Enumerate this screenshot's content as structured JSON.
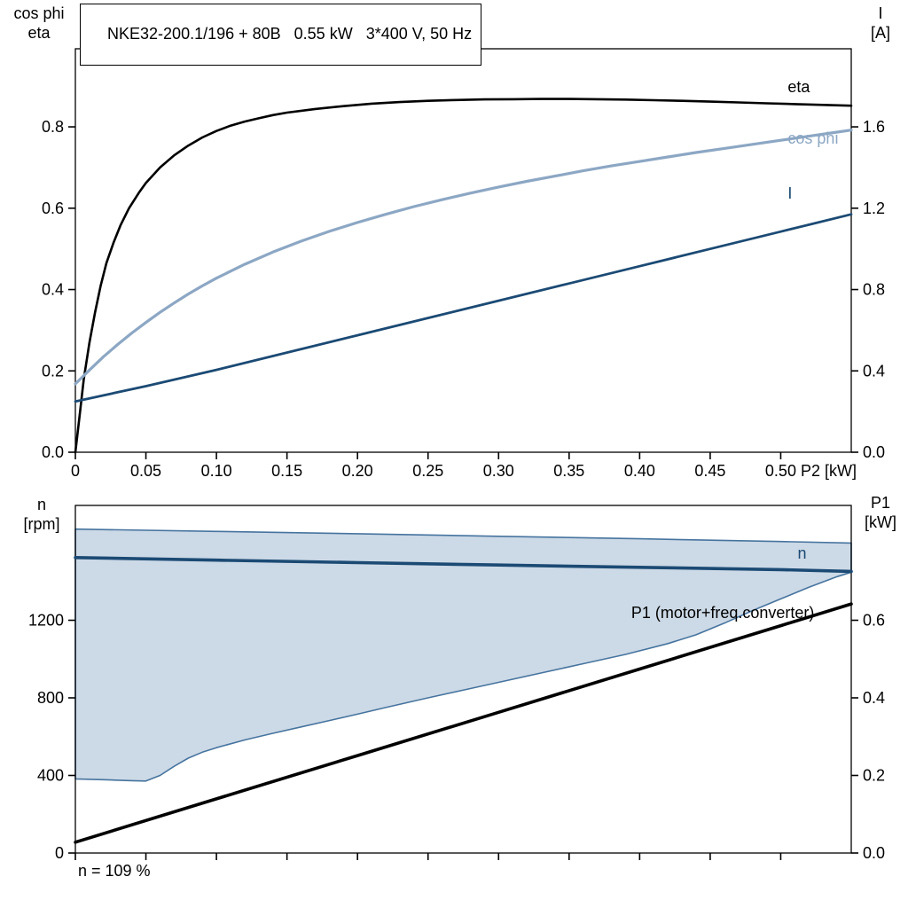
{
  "header": {
    "title": "NKE32-200.1/196 + 80B   0.55 kW   3*400 V, 50 Hz"
  },
  "axes_corner_labels": {
    "top_chart_left": [
      "cos phi",
      "eta"
    ],
    "top_chart_right": [
      "I",
      "[A]"
    ],
    "bottom_chart_left": [
      "n",
      "[rpm]"
    ],
    "bottom_chart_right": [
      "P1",
      "[kW]"
    ]
  },
  "footer": {
    "note": "n = 109 %"
  },
  "colors": {
    "black": "#000000",
    "dark_blue": "#1B4A74",
    "light_blue": "#8CA7C4",
    "band_fill": "#CCD9E6",
    "band_edge": "#46749F"
  },
  "chart_data": [
    {
      "type": "line",
      "title": "NKE32-200.1/196 + 80B   0.55 kW   3*400 V, 50 Hz",
      "x_axis": {
        "label": "P2 [kW]",
        "min": 0,
        "max": 0.55,
        "ticks": [
          0,
          0.05,
          0.1,
          0.15,
          0.2,
          0.25,
          0.3,
          0.35,
          0.4,
          0.45,
          0.5
        ],
        "tick_labels": [
          "0",
          "0.05",
          "0.10",
          "0.15",
          "0.20",
          "0.25",
          "0.30",
          "0.35",
          "0.40",
          "0.45",
          "0.50"
        ]
      },
      "y_left": {
        "label": "cos phi / eta",
        "min": 0,
        "max": 0.992,
        "ticks": [
          0,
          0.2,
          0.4,
          0.6,
          0.8
        ],
        "tick_labels": [
          "0.0",
          "0.2",
          "0.4",
          "0.6",
          "0.8"
        ]
      },
      "y_right": {
        "label": "I [A]",
        "min": 0,
        "max": 1.984,
        "ticks": [
          0,
          0.4,
          0.8,
          1.2,
          1.6
        ],
        "tick_labels": [
          "0.0",
          "0.4",
          "0.8",
          "1.2",
          "1.6"
        ]
      },
      "series": [
        {
          "name": "eta",
          "kind": "line",
          "axis": "left",
          "color": "#000000",
          "width": 2.6,
          "label": {
            "text": "eta",
            "x": 0.505,
            "y": 0.898,
            "anchor": "start",
            "color": "#000000"
          },
          "points": [
            [
              0,
              0
            ],
            [
              0.003,
              0.09
            ],
            [
              0.006,
              0.18
            ],
            [
              0.01,
              0.27
            ],
            [
              0.014,
              0.345
            ],
            [
              0.018,
              0.41
            ],
            [
              0.022,
              0.465
            ],
            [
              0.027,
              0.515
            ],
            [
              0.032,
              0.558
            ],
            [
              0.038,
              0.6
            ],
            [
              0.045,
              0.638
            ],
            [
              0.05,
              0.662
            ],
            [
              0.06,
              0.7
            ],
            [
              0.07,
              0.73
            ],
            [
              0.08,
              0.754
            ],
            [
              0.09,
              0.774
            ],
            [
              0.1,
              0.79
            ],
            [
              0.11,
              0.803
            ],
            [
              0.12,
              0.813
            ],
            [
              0.13,
              0.821
            ],
            [
              0.14,
              0.829
            ],
            [
              0.15,
              0.835
            ],
            [
              0.17,
              0.844
            ],
            [
              0.19,
              0.851
            ],
            [
              0.21,
              0.857
            ],
            [
              0.23,
              0.861
            ],
            [
              0.25,
              0.864
            ],
            [
              0.27,
              0.866
            ],
            [
              0.29,
              0.8675
            ],
            [
              0.31,
              0.868
            ],
            [
              0.33,
              0.8685
            ],
            [
              0.35,
              0.8685
            ],
            [
              0.37,
              0.868
            ],
            [
              0.39,
              0.867
            ],
            [
              0.41,
              0.8655
            ],
            [
              0.43,
              0.864
            ],
            [
              0.45,
              0.862
            ],
            [
              0.47,
              0.86
            ],
            [
              0.49,
              0.858
            ],
            [
              0.51,
              0.856
            ],
            [
              0.53,
              0.854
            ],
            [
              0.55,
              0.852
            ]
          ]
        },
        {
          "name": "cos-phi",
          "kind": "line",
          "axis": "left",
          "color": "#8CA7C4",
          "width": 3.2,
          "label": {
            "text": "cos phi",
            "x": 0.505,
            "y": 0.772,
            "anchor": "start",
            "color": "#8CA7C4"
          },
          "points": [
            [
              0,
              0.168
            ],
            [
              0.005,
              0.185
            ],
            [
              0.01,
              0.202
            ],
            [
              0.02,
              0.235
            ],
            [
              0.03,
              0.265
            ],
            [
              0.04,
              0.293
            ],
            [
              0.05,
              0.319
            ],
            [
              0.06,
              0.344
            ],
            [
              0.07,
              0.367
            ],
            [
              0.08,
              0.389
            ],
            [
              0.09,
              0.409
            ],
            [
              0.1,
              0.428
            ],
            [
              0.12,
              0.462
            ],
            [
              0.14,
              0.492
            ],
            [
              0.16,
              0.519
            ],
            [
              0.18,
              0.543
            ],
            [
              0.2,
              0.565
            ],
            [
              0.22,
              0.585
            ],
            [
              0.24,
              0.604
            ],
            [
              0.26,
              0.621
            ],
            [
              0.28,
              0.637
            ],
            [
              0.3,
              0.652
            ],
            [
              0.32,
              0.666
            ],
            [
              0.34,
              0.679
            ],
            [
              0.36,
              0.692
            ],
            [
              0.38,
              0.704
            ],
            [
              0.4,
              0.715
            ],
            [
              0.42,
              0.726
            ],
            [
              0.44,
              0.737
            ],
            [
              0.46,
              0.747
            ],
            [
              0.48,
              0.757
            ],
            [
              0.5,
              0.767
            ],
            [
              0.52,
              0.777
            ],
            [
              0.54,
              0.787
            ],
            [
              0.55,
              0.792
            ]
          ]
        },
        {
          "name": "current",
          "kind": "line",
          "axis": "right",
          "color": "#1B4A74",
          "width": 2.8,
          "label": {
            "text": "I",
            "x": 0.505,
            "y": 1.273,
            "anchor": "start",
            "color": "#1B4A74"
          },
          "points": [
            [
              0,
              0.25
            ],
            [
              0.05,
              0.325
            ],
            [
              0.1,
              0.405
            ],
            [
              0.15,
              0.49
            ],
            [
              0.2,
              0.575
            ],
            [
              0.25,
              0.66
            ],
            [
              0.3,
              0.745
            ],
            [
              0.35,
              0.83
            ],
            [
              0.4,
              0.915
            ],
            [
              0.45,
              1.0
            ],
            [
              0.5,
              1.085
            ],
            [
              0.55,
              1.17
            ]
          ]
        }
      ]
    },
    {
      "type": "line",
      "title": "",
      "x_axis": {
        "label": "",
        "min": 0,
        "max": 0.55,
        "ticks": [
          0,
          0.05,
          0.1,
          0.15,
          0.2,
          0.25,
          0.3,
          0.35,
          0.4,
          0.45,
          0.5
        ],
        "tick_labels": []
      },
      "y_left": {
        "label": "n [rpm]",
        "min": 0,
        "max": 1792,
        "ticks": [
          0,
          400,
          800,
          1200
        ],
        "tick_labels": [
          "0",
          "400",
          "800",
          "1200"
        ]
      },
      "y_right": {
        "label": "P1 [kW]",
        "min": 0,
        "max": 0.896,
        "ticks": [
          0,
          0.2,
          0.4,
          0.6
        ],
        "tick_labels": [
          "0.0",
          "0.2",
          "0.4",
          "0.6"
        ]
      },
      "series": [
        {
          "name": "speed-band",
          "kind": "band",
          "axis": "left",
          "fill": "#CCD9E6",
          "stroke": "#46749F",
          "stroke_width": 1.6,
          "upper": [
            [
              0,
              1670
            ],
            [
              0.1,
              1658
            ],
            [
              0.2,
              1646
            ],
            [
              0.3,
              1633
            ],
            [
              0.4,
              1620
            ],
            [
              0.5,
              1606
            ],
            [
              0.55,
              1598
            ]
          ],
          "lower": [
            [
              0,
              382
            ],
            [
              0.02,
              378
            ],
            [
              0.04,
              373
            ],
            [
              0.05,
              371
            ],
            [
              0.06,
              400
            ],
            [
              0.07,
              447
            ],
            [
              0.08,
              489
            ],
            [
              0.09,
              520
            ],
            [
              0.1,
              543
            ],
            [
              0.12,
              583
            ],
            [
              0.14,
              617
            ],
            [
              0.16,
              650
            ],
            [
              0.18,
              683
            ],
            [
              0.2,
              716
            ],
            [
              0.22,
              750
            ],
            [
              0.25,
              800
            ],
            [
              0.28,
              848
            ],
            [
              0.3,
              880
            ],
            [
              0.33,
              928
            ],
            [
              0.36,
              976
            ],
            [
              0.39,
              1024
            ],
            [
              0.42,
              1080
            ],
            [
              0.44,
              1125
            ],
            [
              0.46,
              1185
            ],
            [
              0.48,
              1250
            ],
            [
              0.5,
              1310
            ],
            [
              0.52,
              1370
            ],
            [
              0.54,
              1425
            ],
            [
              0.55,
              1448
            ]
          ]
        },
        {
          "name": "speed",
          "kind": "line",
          "axis": "left",
          "color": "#1B4A74",
          "width": 3.6,
          "label": {
            "text": "n",
            "x": 0.512,
            "y": 1545,
            "anchor": "start",
            "color": "#1B4A74"
          },
          "points": [
            [
              0,
              1523
            ],
            [
              0.1,
              1510
            ],
            [
              0.2,
              1497
            ],
            [
              0.3,
              1485
            ],
            [
              0.4,
              1473
            ],
            [
              0.5,
              1461
            ],
            [
              0.55,
              1452
            ]
          ]
        },
        {
          "name": "p1",
          "kind": "line",
          "axis": "right",
          "color": "#000000",
          "width": 3.6,
          "label": {
            "text": "P1 (motor+freq.converter)",
            "x": 0.394,
            "y": 0.62,
            "anchor": "start",
            "color": "#000000"
          },
          "points": [
            [
              0,
              0.028
            ],
            [
              0.1,
              0.1396
            ],
            [
              0.2,
              0.2512
            ],
            [
              0.3,
              0.3628
            ],
            [
              0.4,
              0.4744
            ],
            [
              0.5,
              0.586
            ],
            [
              0.55,
              0.642
            ]
          ]
        }
      ]
    }
  ]
}
